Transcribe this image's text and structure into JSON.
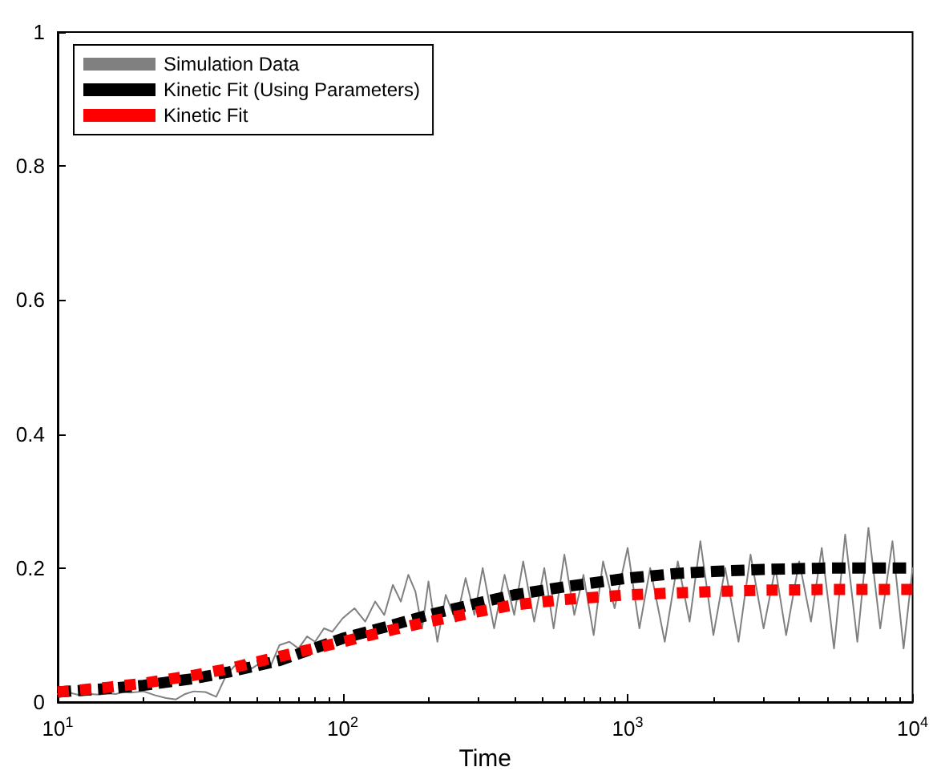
{
  "chart_data": {
    "type": "line",
    "xlabel": "Time",
    "log": "x",
    "xlim": [
      10,
      10000
    ],
    "ylim": [
      0,
      1
    ],
    "xticks": [
      {
        "value": 10,
        "label": "10$^{1}$"
      },
      {
        "value": 100,
        "label": "10$^{2}$"
      },
      {
        "value": 1000,
        "label": "10$^{3}$"
      },
      {
        "value": 10000,
        "label": "10$^{4}$"
      }
    ],
    "yticks": [
      0,
      0.2,
      0.4,
      0.6,
      0.8,
      1
    ],
    "grid": false,
    "legend": "top left",
    "marker": "none",
    "series": [
      {
        "name": "Simulation Data",
        "color": "#808080",
        "line_style": "solid",
        "x": [
          10,
          11,
          12,
          13,
          14,
          15,
          16,
          17,
          18,
          20,
          22,
          24,
          26,
          28,
          30,
          33,
          36,
          39,
          42,
          45,
          48,
          52,
          56,
          60,
          65,
          70,
          75,
          80,
          86,
          92,
          100,
          110,
          120,
          130,
          140,
          150,
          160,
          170,
          180,
          190,
          200,
          215,
          230,
          250,
          270,
          290,
          310,
          340,
          370,
          400,
          430,
          470,
          510,
          550,
          600,
          650,
          700,
          760,
          820,
          900,
          1000,
          1100,
          1200,
          1350,
          1500,
          1650,
          1800,
          2000,
          2200,
          2450,
          2700,
          3000,
          3300,
          3600,
          4000,
          4400,
          4800,
          5300,
          5800,
          6400,
          7000,
          7700,
          8500,
          9300,
          10000
        ],
        "values": [
          0.012,
          0.014,
          0.01,
          0.012,
          0.011,
          0.013,
          0.012,
          0.015,
          0.014,
          0.016,
          0.01,
          0.006,
          0.004,
          0.012,
          0.016,
          0.015,
          0.008,
          0.04,
          0.055,
          0.063,
          0.05,
          0.06,
          0.055,
          0.085,
          0.09,
          0.08,
          0.098,
          0.09,
          0.11,
          0.105,
          0.125,
          0.14,
          0.12,
          0.15,
          0.13,
          0.175,
          0.15,
          0.19,
          0.165,
          0.11,
          0.18,
          0.09,
          0.16,
          0.12,
          0.185,
          0.13,
          0.2,
          0.11,
          0.19,
          0.13,
          0.21,
          0.12,
          0.2,
          0.11,
          0.22,
          0.13,
          0.19,
          0.1,
          0.21,
          0.14,
          0.23,
          0.11,
          0.2,
          0.09,
          0.21,
          0.12,
          0.24,
          0.1,
          0.2,
          0.09,
          0.22,
          0.11,
          0.2,
          0.1,
          0.21,
          0.12,
          0.23,
          0.08,
          0.25,
          0.09,
          0.26,
          0.11,
          0.24,
          0.08,
          0.2
        ]
      },
      {
        "name": "Kinetic Fit (Using Parameters)",
        "color": "#000000",
        "line_style": "dashed",
        "x": [
          10,
          15,
          20,
          30,
          40,
          60,
          100,
          150,
          200,
          300,
          400,
          600,
          1000,
          1500,
          2000,
          3000,
          5000,
          10000
        ],
        "values": [
          0.015,
          0.02,
          0.025,
          0.035,
          0.045,
          0.062,
          0.095,
          0.115,
          0.13,
          0.148,
          0.16,
          0.172,
          0.185,
          0.192,
          0.195,
          0.198,
          0.2,
          0.2
        ]
      },
      {
        "name": "Kinetic Fit",
        "color": "#ff0000",
        "line_style": "dotted",
        "x": [
          10,
          15,
          20,
          30,
          40,
          60,
          100,
          150,
          200,
          300,
          400,
          600,
          1000,
          1500,
          2000,
          3000,
          5000,
          10000
        ],
        "values": [
          0.015,
          0.022,
          0.028,
          0.04,
          0.05,
          0.068,
          0.09,
          0.108,
          0.12,
          0.135,
          0.145,
          0.153,
          0.16,
          0.163,
          0.165,
          0.167,
          0.168,
          0.168
        ]
      }
    ]
  }
}
